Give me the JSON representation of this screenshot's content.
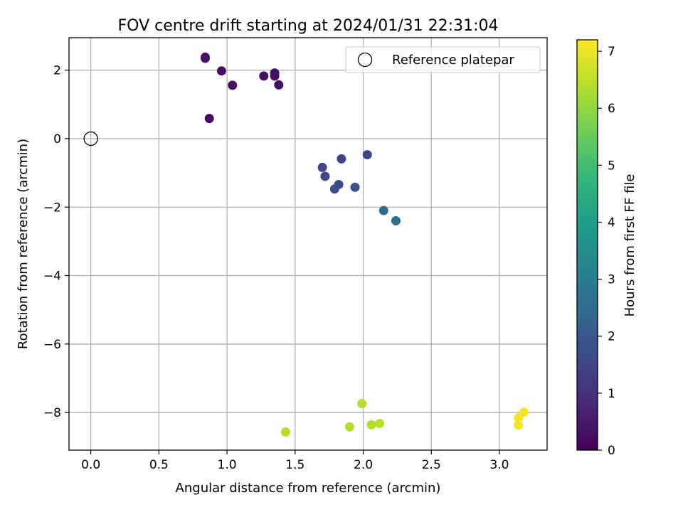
{
  "chart_data": {
    "type": "scatter",
    "title": "FOV centre drift starting at 2024/01/31 22:31:04",
    "xlabel": "Angular distance from reference (arcmin)",
    "ylabel": "Rotation from reference (arcmin)",
    "xlim": [
      -0.16,
      3.35
    ],
    "ylim": [
      -9.1,
      2.95
    ],
    "xticks": [
      0.0,
      0.5,
      1.0,
      1.5,
      2.0,
      2.5,
      3.0
    ],
    "xtick_labels": [
      "0.0",
      "0.5",
      "1.0",
      "1.5",
      "2.0",
      "2.5",
      "3.0"
    ],
    "yticks": [
      2,
      0,
      -2,
      -4,
      -6,
      -8
    ],
    "ytick_labels": [
      "2",
      "0",
      "−2",
      "−4",
      "−6",
      "−8"
    ],
    "grid": true,
    "legend": {
      "position": "top-right",
      "label": "Reference platepar"
    },
    "reference_point": {
      "x": 0.0,
      "y": 0.0
    },
    "colorbar": {
      "label": "Hours from first FF file",
      "range": [
        0,
        7.2
      ],
      "ticks": [
        0,
        1,
        2,
        3,
        4,
        5,
        6,
        7
      ],
      "tick_labels": [
        "0",
        "1",
        "2",
        "3",
        "4",
        "5",
        "6",
        "7"
      ],
      "colormap": [
        "#440154",
        "#482878",
        "#3e4989",
        "#31688e",
        "#26828e",
        "#1f9e89",
        "#35b779",
        "#6ece58",
        "#b5de2b",
        "#fde725"
      ]
    },
    "points": [
      {
        "x": 0.84,
        "y": 2.38,
        "hours": 0.3
      },
      {
        "x": 0.84,
        "y": 2.35,
        "hours": 0.3
      },
      {
        "x": 0.96,
        "y": 1.98,
        "hours": 0.3
      },
      {
        "x": 1.04,
        "y": 1.56,
        "hours": 0.3
      },
      {
        "x": 0.87,
        "y": 0.59,
        "hours": 0.3
      },
      {
        "x": 1.27,
        "y": 1.83,
        "hours": 0.3
      },
      {
        "x": 1.35,
        "y": 1.92,
        "hours": 0.3
      },
      {
        "x": 1.35,
        "y": 1.83,
        "hours": 0.3
      },
      {
        "x": 1.38,
        "y": 1.57,
        "hours": 0.3
      },
      {
        "x": 1.7,
        "y": -0.84,
        "hours": 1.5
      },
      {
        "x": 1.72,
        "y": -1.1,
        "hours": 1.6
      },
      {
        "x": 1.84,
        "y": -0.59,
        "hours": 1.5
      },
      {
        "x": 2.03,
        "y": -0.47,
        "hours": 1.5
      },
      {
        "x": 1.82,
        "y": -1.34,
        "hours": 1.7
      },
      {
        "x": 1.79,
        "y": -1.47,
        "hours": 1.7
      },
      {
        "x": 1.94,
        "y": -1.42,
        "hours": 1.8
      },
      {
        "x": 2.15,
        "y": -2.1,
        "hours": 2.4
      },
      {
        "x": 2.24,
        "y": -2.4,
        "hours": 2.6
      },
      {
        "x": 1.99,
        "y": -7.74,
        "hours": 6.4
      },
      {
        "x": 1.43,
        "y": -8.57,
        "hours": 6.4
      },
      {
        "x": 1.9,
        "y": -8.42,
        "hours": 6.4
      },
      {
        "x": 2.06,
        "y": -8.36,
        "hours": 6.4
      },
      {
        "x": 2.12,
        "y": -8.32,
        "hours": 6.4
      },
      {
        "x": 3.18,
        "y": -7.99,
        "hours": 7.1
      },
      {
        "x": 3.14,
        "y": -8.16,
        "hours": 7.1
      },
      {
        "x": 3.14,
        "y": -8.37,
        "hours": 7.1
      }
    ]
  }
}
